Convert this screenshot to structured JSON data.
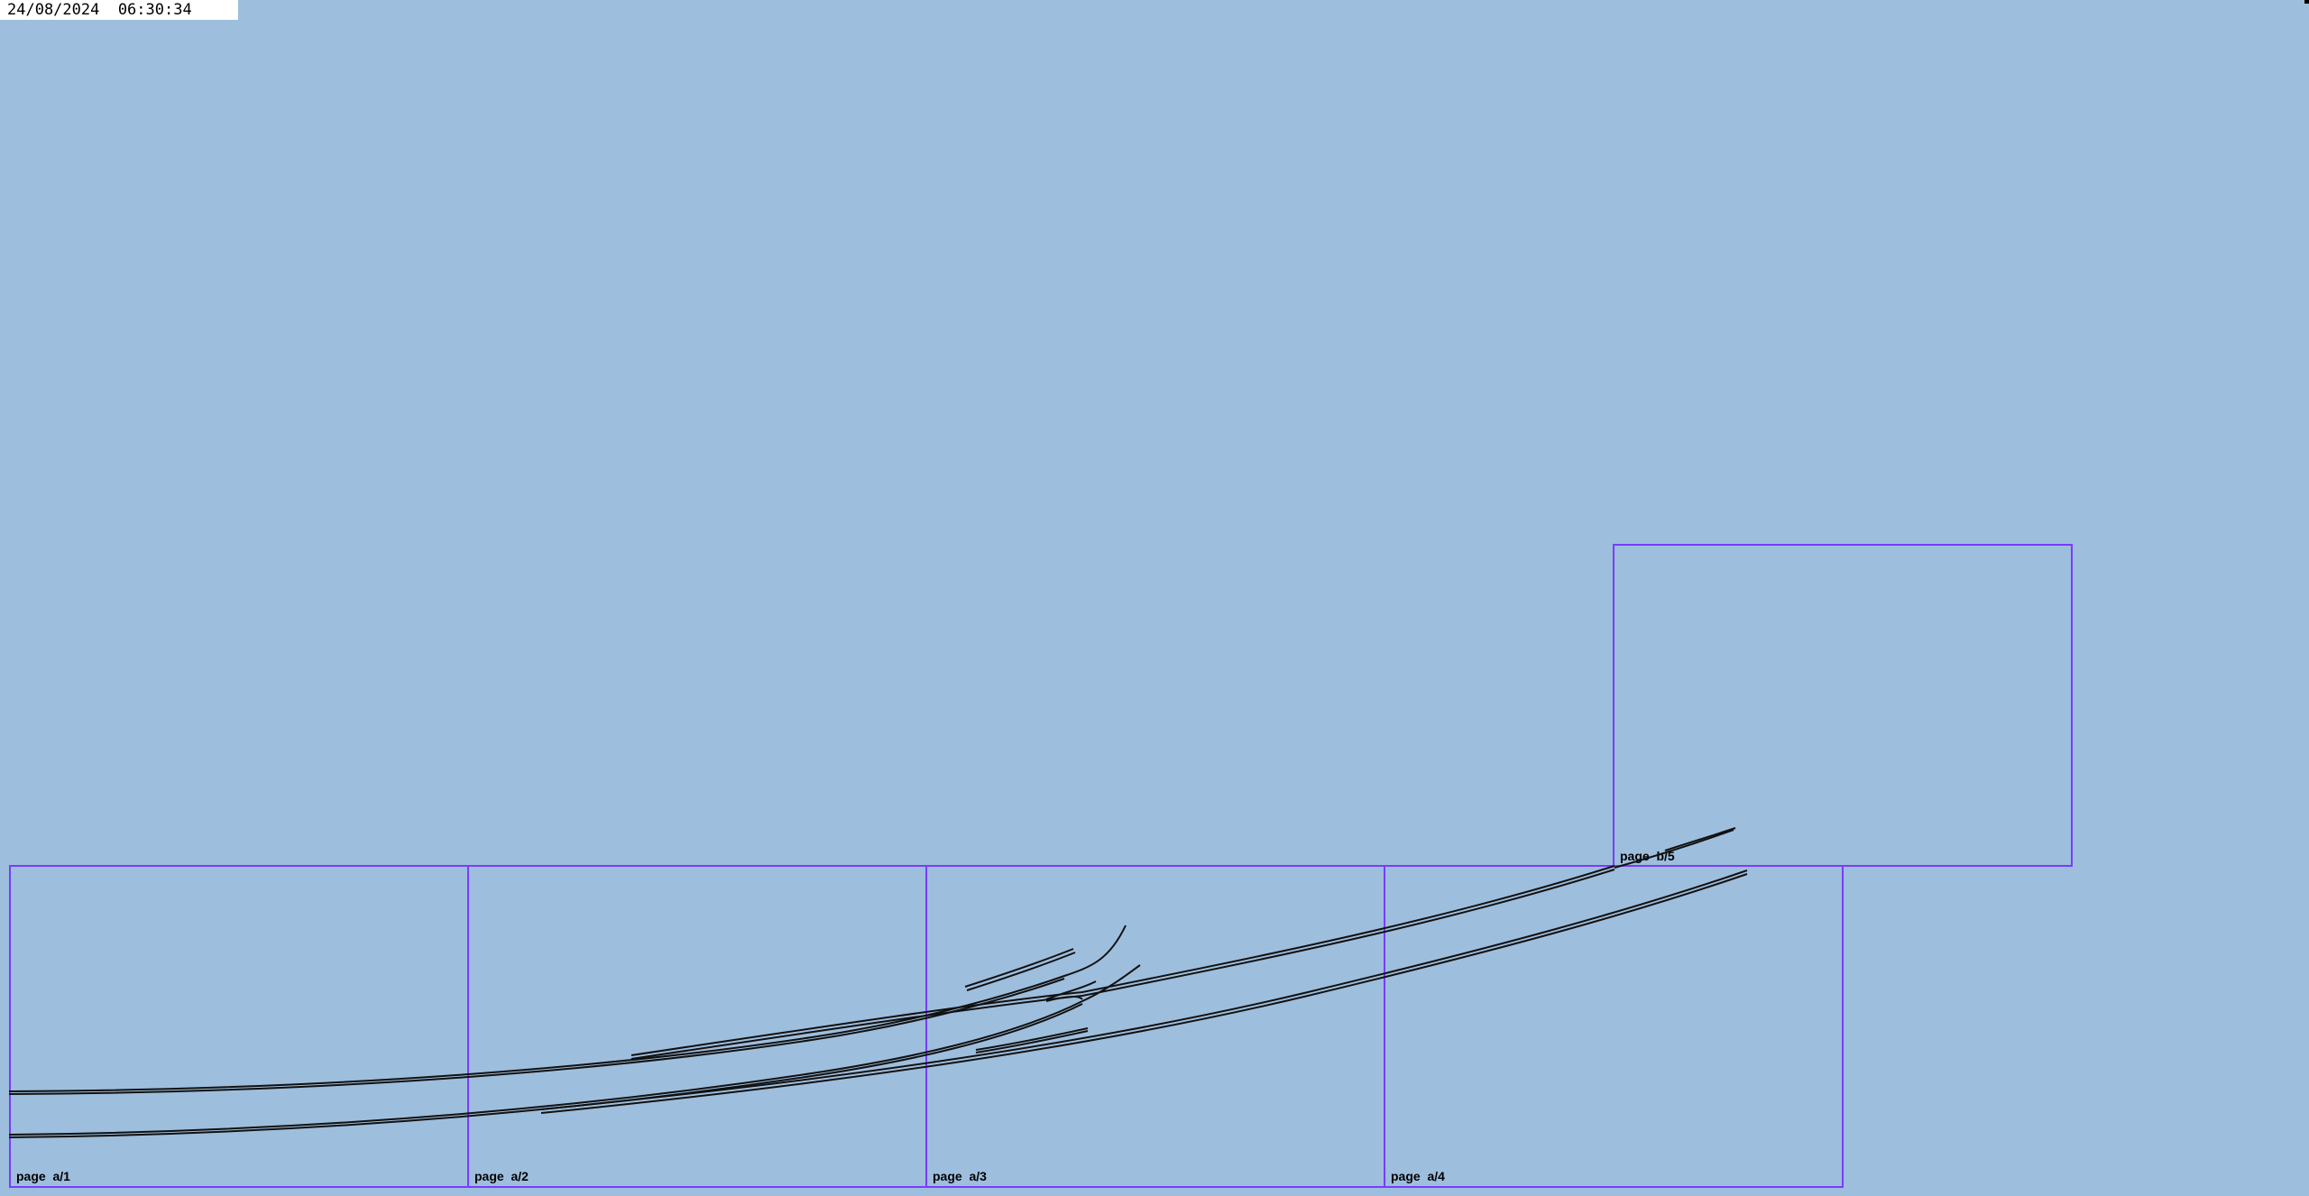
{
  "header": {
    "timestamp": "24/08/2024  06:30:34"
  },
  "pages": [
    {
      "id": "a1",
      "label": "page  a/1"
    },
    {
      "id": "a2",
      "label": "page  a/2"
    },
    {
      "id": "a3",
      "label": "page  a/3"
    },
    {
      "id": "a4",
      "label": "page  a/4"
    },
    {
      "id": "b5",
      "label": "page  b/5"
    }
  ],
  "colors": {
    "background": "#9ebedd",
    "page_border": "#7a3cff",
    "track_line": "#111111",
    "timestamp_bg": "#ffffff"
  }
}
